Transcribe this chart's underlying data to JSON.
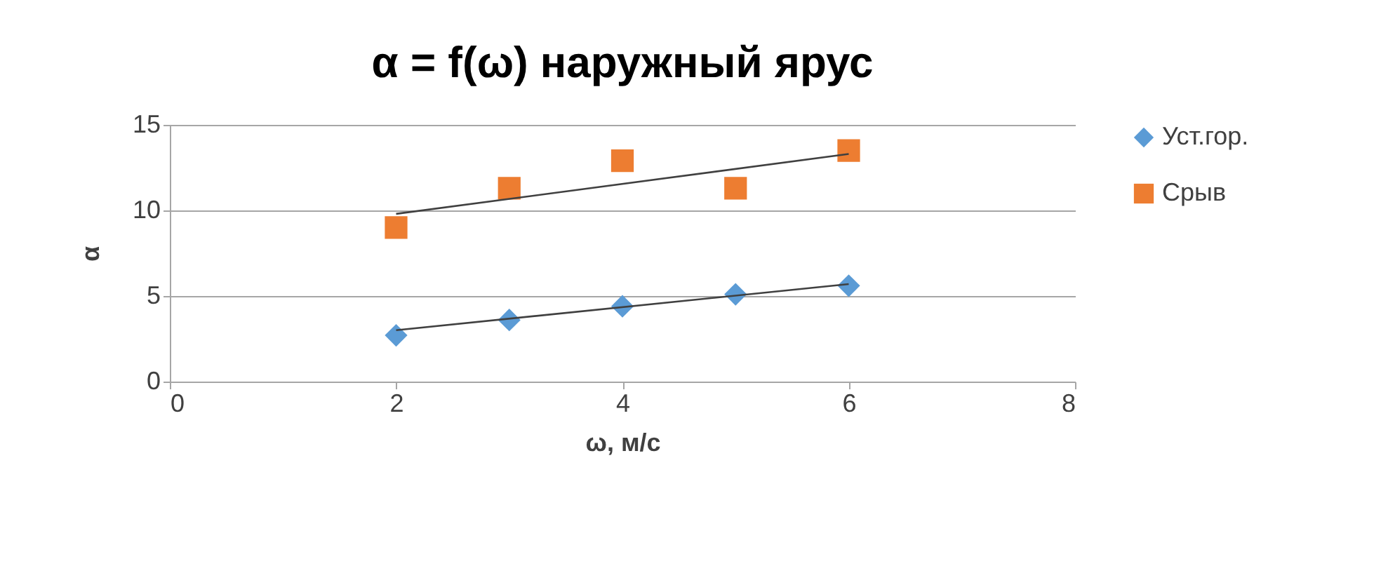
{
  "chart_data": {
    "type": "scatter",
    "title": "α = f(ω) наружный ярус",
    "xlabel": "ω, м/с",
    "ylabel": "α",
    "xlim": [
      0,
      8
    ],
    "xticks": [
      0,
      2,
      4,
      6,
      8
    ],
    "ylim": [
      0,
      15
    ],
    "yticks": [
      0,
      5,
      10,
      15
    ],
    "grid": "y",
    "legend": "right",
    "series": [
      {
        "name": "Уст.гор.",
        "type": "scatter",
        "marker": "diamond",
        "color": "#5b9bd5",
        "x": [
          2,
          3,
          4,
          5,
          6
        ],
        "values": [
          2.7,
          3.6,
          4.4,
          5.1,
          5.6
        ]
      },
      {
        "name": "Срыв",
        "type": "scatter",
        "marker": "square",
        "color": "#ed7d31",
        "x": [
          2,
          3,
          4,
          5,
          6
        ],
        "values": [
          9.0,
          11.3,
          12.9,
          11.3,
          13.5
        ]
      },
      {
        "type": "line",
        "color": "#404040",
        "x": [
          2,
          6
        ],
        "values": [
          3.0,
          5.7
        ]
      },
      {
        "type": "line",
        "color": "#404040",
        "x": [
          2,
          6
        ],
        "values": [
          9.8,
          13.3
        ]
      }
    ]
  }
}
